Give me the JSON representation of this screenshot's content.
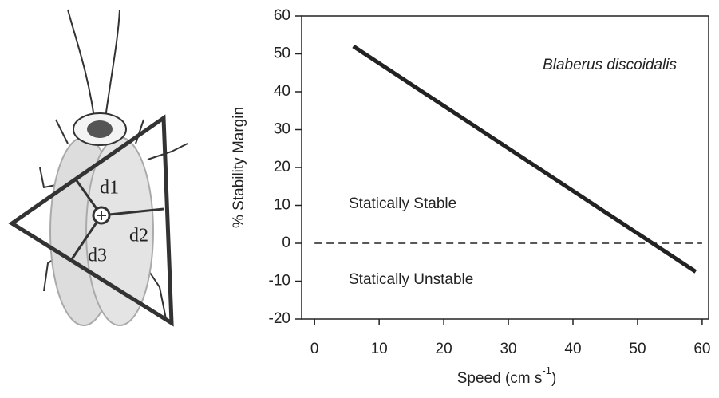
{
  "diagram": {
    "labels": [
      "d1",
      "d2",
      "d3"
    ]
  },
  "chart_data": {
    "type": "line",
    "ylabel": "% Stability Margin",
    "xlabel_parts": [
      "Speed (cm s",
      "-1",
      ")"
    ],
    "annotations": [
      "Blaberus discoidalis",
      "Statically Stable",
      "Statically Unstable"
    ],
    "x": [
      6,
      59
    ],
    "series": [
      {
        "name": "Blaberus discoidalis",
        "color": "#222222",
        "values": [
          52,
          -7.5
        ]
      }
    ],
    "reference_line": 0,
    "xlim": [
      -2,
      61
    ],
    "xticks": [
      0,
      10,
      20,
      30,
      40,
      50,
      60
    ],
    "ylim": [
      -20,
      60
    ],
    "yticks": [
      -20,
      -10,
      0,
      10,
      20,
      30,
      40,
      50,
      60
    ],
    "grid": false
  }
}
